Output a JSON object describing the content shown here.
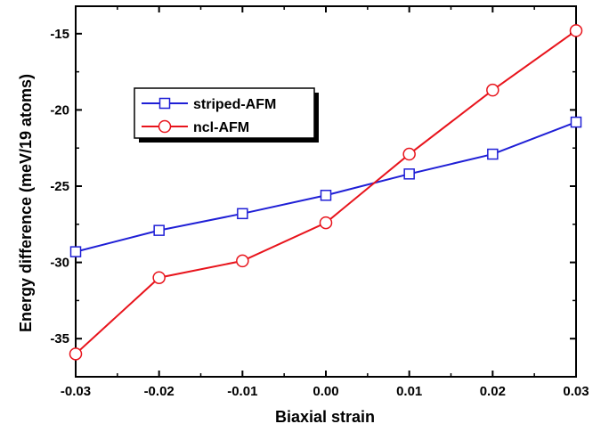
{
  "chart_data": {
    "type": "line",
    "xlabel": "Biaxial strain",
    "ylabel": "Energy difference (meV/19 atoms)",
    "x": [
      -0.03,
      -0.02,
      -0.01,
      0.0,
      0.01,
      0.02,
      0.03
    ],
    "xlim": [
      -0.03,
      0.03
    ],
    "ylim": [
      -37.5,
      -13.2
    ],
    "x_ticks": [
      "-0.03",
      "-0.02",
      "-0.01",
      "0.00",
      "0.01",
      "0.02",
      "0.03"
    ],
    "y_ticks": [
      "-35",
      "-30",
      "-25",
      "-20",
      "-15"
    ],
    "grid": false,
    "legend_placement": "upper-left",
    "series": [
      {
        "name": "striped-AFM",
        "color": "#1f1fd6",
        "marker": "square",
        "values": [
          -29.3,
          -27.9,
          -26.8,
          -25.6,
          -24.2,
          -22.9,
          -20.8
        ]
      },
      {
        "name": "ncl-AFM",
        "color": "#e8141c",
        "marker": "circle",
        "values": [
          -36.0,
          -31.0,
          -29.9,
          -27.4,
          -22.9,
          -18.7,
          -14.8
        ]
      }
    ]
  }
}
